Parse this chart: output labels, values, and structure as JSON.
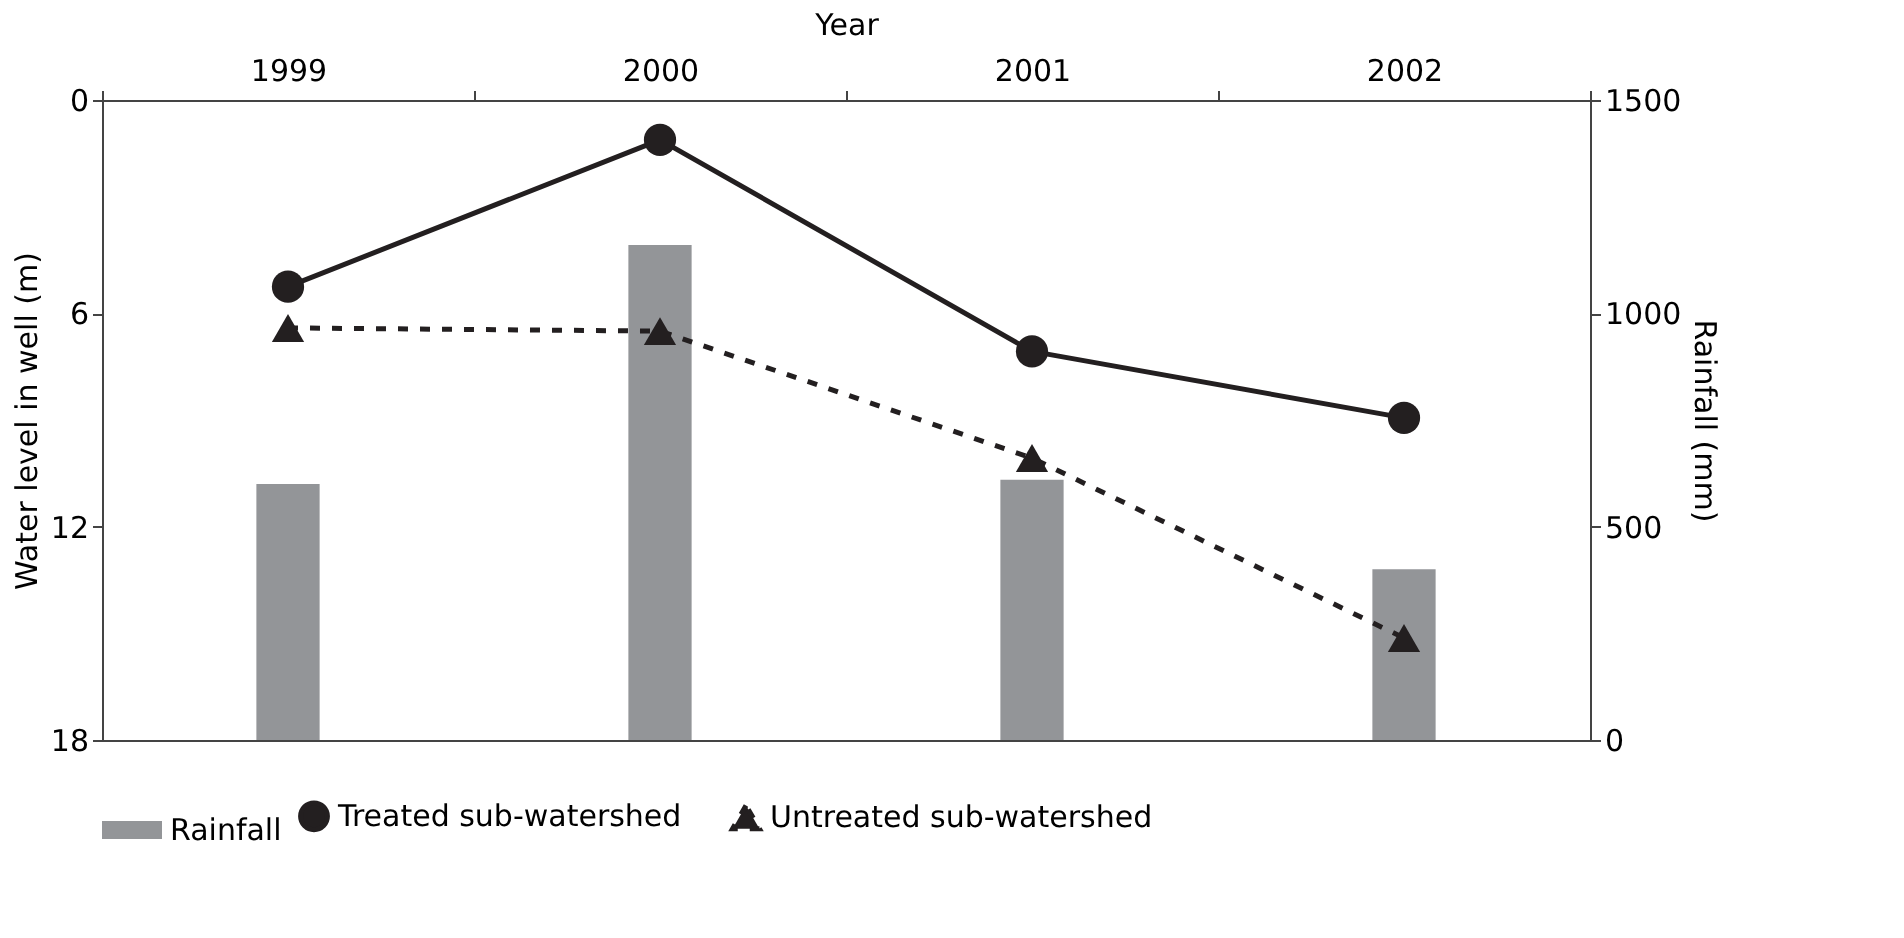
{
  "chart_data": {
    "type": "line",
    "xlabel": "Year",
    "ylabel": "Water level in well (m)",
    "y2label": "Rainfall (mm)",
    "categories": [
      "1999",
      "2000",
      "2001",
      "2002"
    ],
    "ylim": [
      18,
      0
    ],
    "yticks": [
      0,
      6,
      12,
      18
    ],
    "y2lim": [
      0,
      1500
    ],
    "y2ticks": [
      0,
      500,
      1000,
      1500
    ],
    "series": [
      {
        "name": "Rainfall",
        "type": "bar",
        "axis": "y2",
        "color": "#939598",
        "values": [
          600,
          1160,
          610,
          400
        ]
      },
      {
        "name": "Treated sub-watershed",
        "color": "#231f20",
        "marker": "circle",
        "line_style": "solid",
        "values": [
          5.25,
          1.12,
          7.07,
          8.94
        ]
      },
      {
        "name": "Untreated sub-watershed",
        "color": "#231f20",
        "marker": "triangle",
        "line_style": "dashed",
        "values": [
          6.41,
          6.5,
          10.07,
          15.13
        ]
      }
    ],
    "legend": "bottom",
    "grid": false
  }
}
